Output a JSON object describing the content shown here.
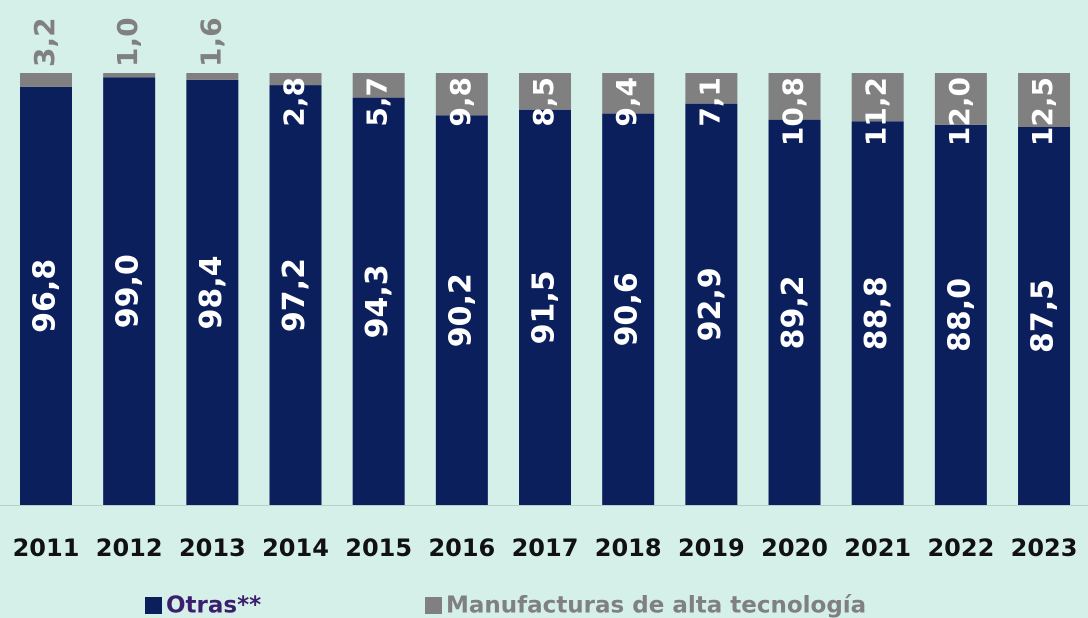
{
  "chart_data": {
    "type": "stacked_bar",
    "categories": [
      "2011",
      "2012",
      "2013",
      "2014",
      "2015",
      "2016",
      "2017",
      "2018",
      "2019",
      "2020",
      "2021",
      "2022",
      "2023"
    ],
    "series": [
      {
        "name": "Otras**",
        "color": "#0b1f5c",
        "values": [
          96.8,
          99.0,
          98.4,
          97.2,
          94.3,
          90.2,
          91.5,
          90.6,
          92.9,
          89.2,
          88.8,
          88.0,
          87.5
        ],
        "value_labels": [
          "96,8",
          "99,0",
          "98,4",
          "97,2",
          "94,3",
          "90,2",
          "91,5",
          "90,6",
          "92,9",
          "89,2",
          "88,8",
          "88,0",
          "87,5"
        ]
      },
      {
        "name": "Manufacturas de alta tecnología",
        "color": "#808080",
        "values": [
          3.2,
          1.0,
          1.6,
          2.8,
          5.7,
          9.8,
          8.5,
          9.4,
          7.1,
          10.8,
          11.2,
          12.0,
          12.5
        ],
        "value_labels": [
          "3,2",
          "1,0",
          "1,6",
          "2,8",
          "5,7",
          "9,8",
          "8,5",
          "9,4",
          "7,1",
          "10,8",
          "11,2",
          "12,0",
          "12,5"
        ]
      }
    ],
    "ylim": [
      0,
      100
    ]
  }
}
